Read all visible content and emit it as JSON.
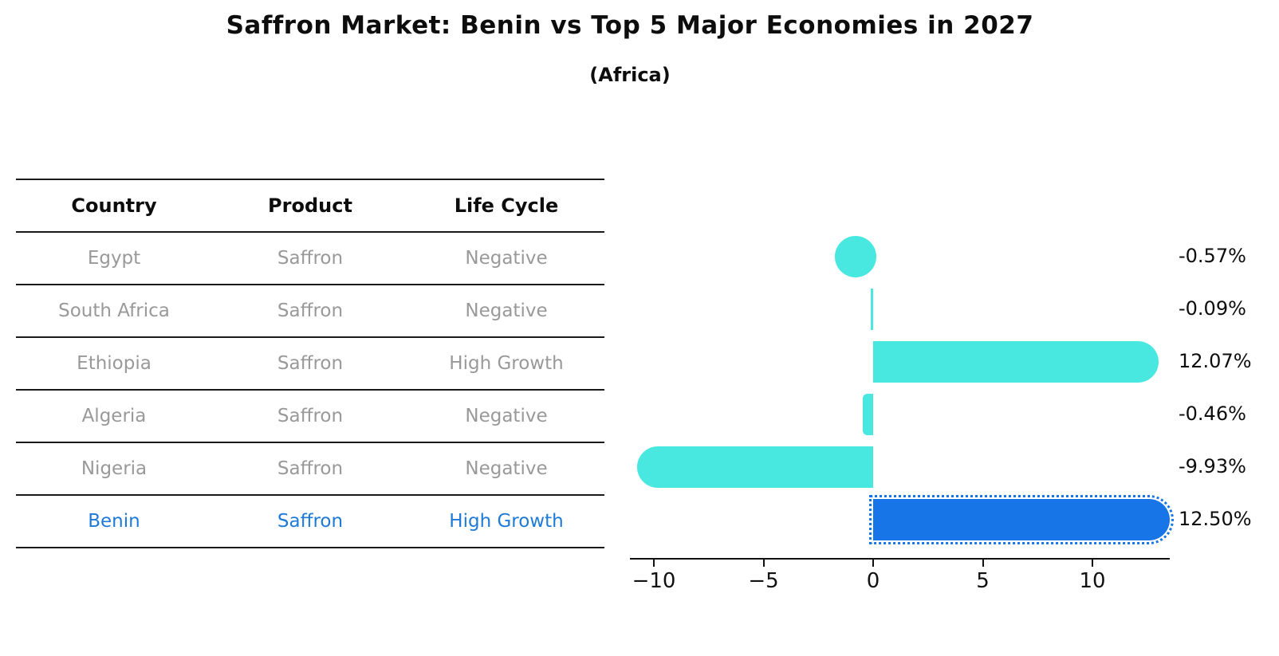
{
  "title": "Saffron Market: Benin vs Top 5 Major Economies in 2027",
  "subtitle": "(Africa)",
  "table": {
    "headers": [
      "Country",
      "Product",
      "Life Cycle"
    ],
    "rows": [
      {
        "country": "Egypt",
        "product": "Saffron",
        "life_cycle": "Negative",
        "highlight": false
      },
      {
        "country": "South Africa",
        "product": "Saffron",
        "life_cycle": "Negative",
        "highlight": false
      },
      {
        "country": "Ethiopia",
        "product": "Saffron",
        "life_cycle": "High Growth",
        "highlight": false
      },
      {
        "country": "Algeria",
        "product": "Saffron",
        "life_cycle": "Negative",
        "highlight": false
      },
      {
        "country": "Nigeria",
        "product": "Saffron",
        "life_cycle": "Negative",
        "highlight": false
      },
      {
        "country": "Benin",
        "product": "Saffron",
        "life_cycle": "High Growth",
        "highlight": true
      }
    ]
  },
  "chart_data": {
    "type": "bar",
    "orientation": "horizontal",
    "categories": [
      "Egypt",
      "South Africa",
      "Ethiopia",
      "Algeria",
      "Nigeria",
      "Benin"
    ],
    "values": [
      -0.57,
      -0.09,
      12.07,
      -0.46,
      -9.93,
      12.5
    ],
    "value_labels": [
      "-0.57%",
      "-0.09%",
      "12.07%",
      "-0.46%",
      "-9.93%",
      "12.50%"
    ],
    "title": "Saffron Market: Benin vs Top 5 Major Economies in 2027 (Africa)",
    "xlabel": "",
    "ylabel": "",
    "xticks": [
      -10,
      -5,
      0,
      5,
      10
    ],
    "xtick_labels": [
      "−10",
      "−5",
      "0",
      "5",
      "10"
    ],
    "xlim": [
      -11,
      13.6
    ],
    "grid": false,
    "legend_position": "none",
    "bar_color": "#48e8e1",
    "highlight_color": "#1875e8",
    "highlight_index": 5,
    "highlight_text_color": "#1e7ad6"
  }
}
